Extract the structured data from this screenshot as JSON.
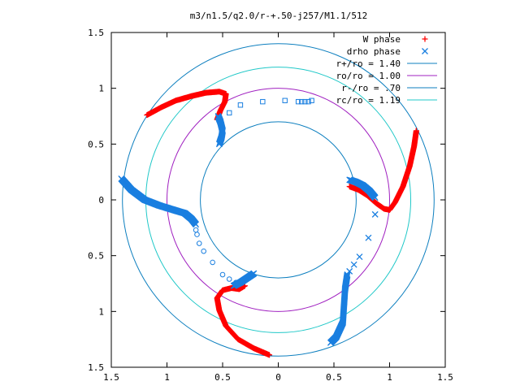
{
  "chart_data": {
    "type": "scatter",
    "title": "m3/n1.5/q2.0/r-+.50-j257/M1.1/512",
    "xlim": [
      -1.5,
      1.5
    ],
    "ylim": [
      -1.5,
      1.5
    ],
    "xticks": [
      "1.5",
      "1",
      "0.5",
      "0",
      "0.5",
      "1",
      "1.5"
    ],
    "yticks": [
      "1.5",
      "1",
      "0.5",
      "0",
      "0.5",
      "1",
      "1.5"
    ],
    "grid": false,
    "legend_position": "top-right",
    "circles": [
      {
        "name": "r+/ro = 1.40",
        "r": 1.4,
        "color": "#0d7fbf"
      },
      {
        "name": "ro/ro = 1.00",
        "r": 1.0,
        "color": "#a020c0"
      },
      {
        "name": "r-/ro = .70",
        "r": 0.7,
        "color": "#0d7fbf"
      },
      {
        "name": "rc/ro = 1.19",
        "r": 1.19,
        "color": "#20c8c8"
      }
    ],
    "series": [
      {
        "name": "W phase",
        "marker": "plus",
        "color": "#ff0000",
        "arms": [
          [
            [
              -1.18,
              0.76
            ],
            [
              -1.05,
              0.83
            ],
            [
              -0.92,
              0.89
            ],
            [
              -0.78,
              0.93
            ],
            [
              -0.65,
              0.96
            ],
            [
              -0.53,
              0.97
            ],
            [
              -0.47,
              0.95
            ],
            [
              -0.48,
              0.88
            ],
            [
              -0.52,
              0.8
            ],
            [
              -0.55,
              0.72
            ]
          ],
          [
            [
              1.24,
              0.62
            ],
            [
              1.22,
              0.48
            ],
            [
              1.18,
              0.3
            ],
            [
              1.12,
              0.12
            ],
            [
              1.05,
              -0.02
            ],
            [
              1.0,
              -0.09
            ],
            [
              0.95,
              -0.08
            ],
            [
              0.88,
              -0.03
            ],
            [
              0.8,
              0.04
            ],
            [
              0.72,
              0.09
            ],
            [
              0.64,
              0.12
            ]
          ],
          [
            [
              -0.08,
              -1.39
            ],
            [
              -0.22,
              -1.33
            ],
            [
              -0.36,
              -1.25
            ],
            [
              -0.47,
              -1.13
            ],
            [
              -0.53,
              -0.99
            ],
            [
              -0.55,
              -0.88
            ],
            [
              -0.5,
              -0.81
            ],
            [
              -0.42,
              -0.79
            ],
            [
              -0.35,
              -0.8
            ],
            [
              -0.3,
              -0.77
            ]
          ]
        ]
      },
      {
        "name": "drho phase",
        "marker": "cross",
        "color": "#1a7fe0",
        "arms": [
          [
            [
              -0.53,
              0.5
            ],
            [
              -0.51,
              0.56
            ],
            [
              -0.5,
              0.62
            ],
            [
              -0.52,
              0.7
            ],
            [
              -0.54,
              0.75
            ]
          ],
          [
            [
              0.64,
              0.18
            ],
            [
              0.7,
              0.16
            ],
            [
              0.76,
              0.13
            ],
            [
              0.82,
              0.08
            ],
            [
              0.87,
              0.02
            ]
          ],
          [
            [
              -1.41,
              0.19
            ],
            [
              -1.32,
              0.09
            ],
            [
              -1.2,
              0.0
            ],
            [
              -1.07,
              -0.05
            ],
            [
              -0.94,
              -0.09
            ],
            [
              -0.84,
              -0.12
            ],
            [
              -0.78,
              -0.17
            ],
            [
              -0.74,
              -0.22
            ]
          ],
          [
            [
              -0.4,
              -0.77
            ],
            [
              -0.34,
              -0.74
            ],
            [
              -0.28,
              -0.7
            ],
            [
              -0.22,
              -0.66
            ]
          ],
          [
            [
              0.62,
              -0.67
            ],
            [
              0.6,
              -0.8
            ],
            [
              0.59,
              -0.95
            ],
            [
              0.58,
              -1.1
            ],
            [
              0.52,
              -1.23
            ],
            [
              0.47,
              -1.28
            ]
          ]
        ],
        "points": [
          [
            0.87,
            -0.13
          ],
          [
            0.81,
            -0.34
          ],
          [
            0.73,
            -0.51
          ],
          [
            0.68,
            -0.58
          ],
          [
            0.64,
            -0.64
          ]
        ]
      },
      {
        "name": "squares",
        "marker": "square",
        "color": "#1a7fe0",
        "points": [
          [
            -0.44,
            0.78
          ],
          [
            -0.34,
            0.85
          ],
          [
            -0.14,
            0.88
          ],
          [
            0.06,
            0.89
          ],
          [
            0.18,
            0.88
          ],
          [
            0.21,
            0.88
          ],
          [
            0.24,
            0.88
          ],
          [
            0.27,
            0.88
          ],
          [
            0.3,
            0.89
          ]
        ]
      },
      {
        "name": "circles",
        "marker": "circle",
        "color": "#1a7fe0",
        "points": [
          [
            -0.74,
            -0.27
          ],
          [
            -0.73,
            -0.31
          ],
          [
            -0.71,
            -0.39
          ],
          [
            -0.67,
            -0.46
          ],
          [
            -0.59,
            -0.56
          ],
          [
            -0.5,
            -0.67
          ],
          [
            -0.44,
            -0.71
          ],
          [
            -0.38,
            -0.74
          ]
        ]
      }
    ],
    "legend": [
      {
        "label": "W phase",
        "marker": "plus",
        "color": "#ff0000"
      },
      {
        "label": "drho phase",
        "marker": "cross",
        "color": "#1a7fe0"
      },
      {
        "label": "r+/ro = 1.40",
        "marker": "line",
        "color": "#0d7fbf"
      },
      {
        "label": "ro/ro = 1.00",
        "marker": "line",
        "color": "#a020c0"
      },
      {
        "label": "r-/ro = .70",
        "marker": "line",
        "color": "#0d7fbf"
      },
      {
        "label": "rc/ro = 1.19",
        "marker": "line",
        "color": "#20c8c8"
      }
    ]
  }
}
